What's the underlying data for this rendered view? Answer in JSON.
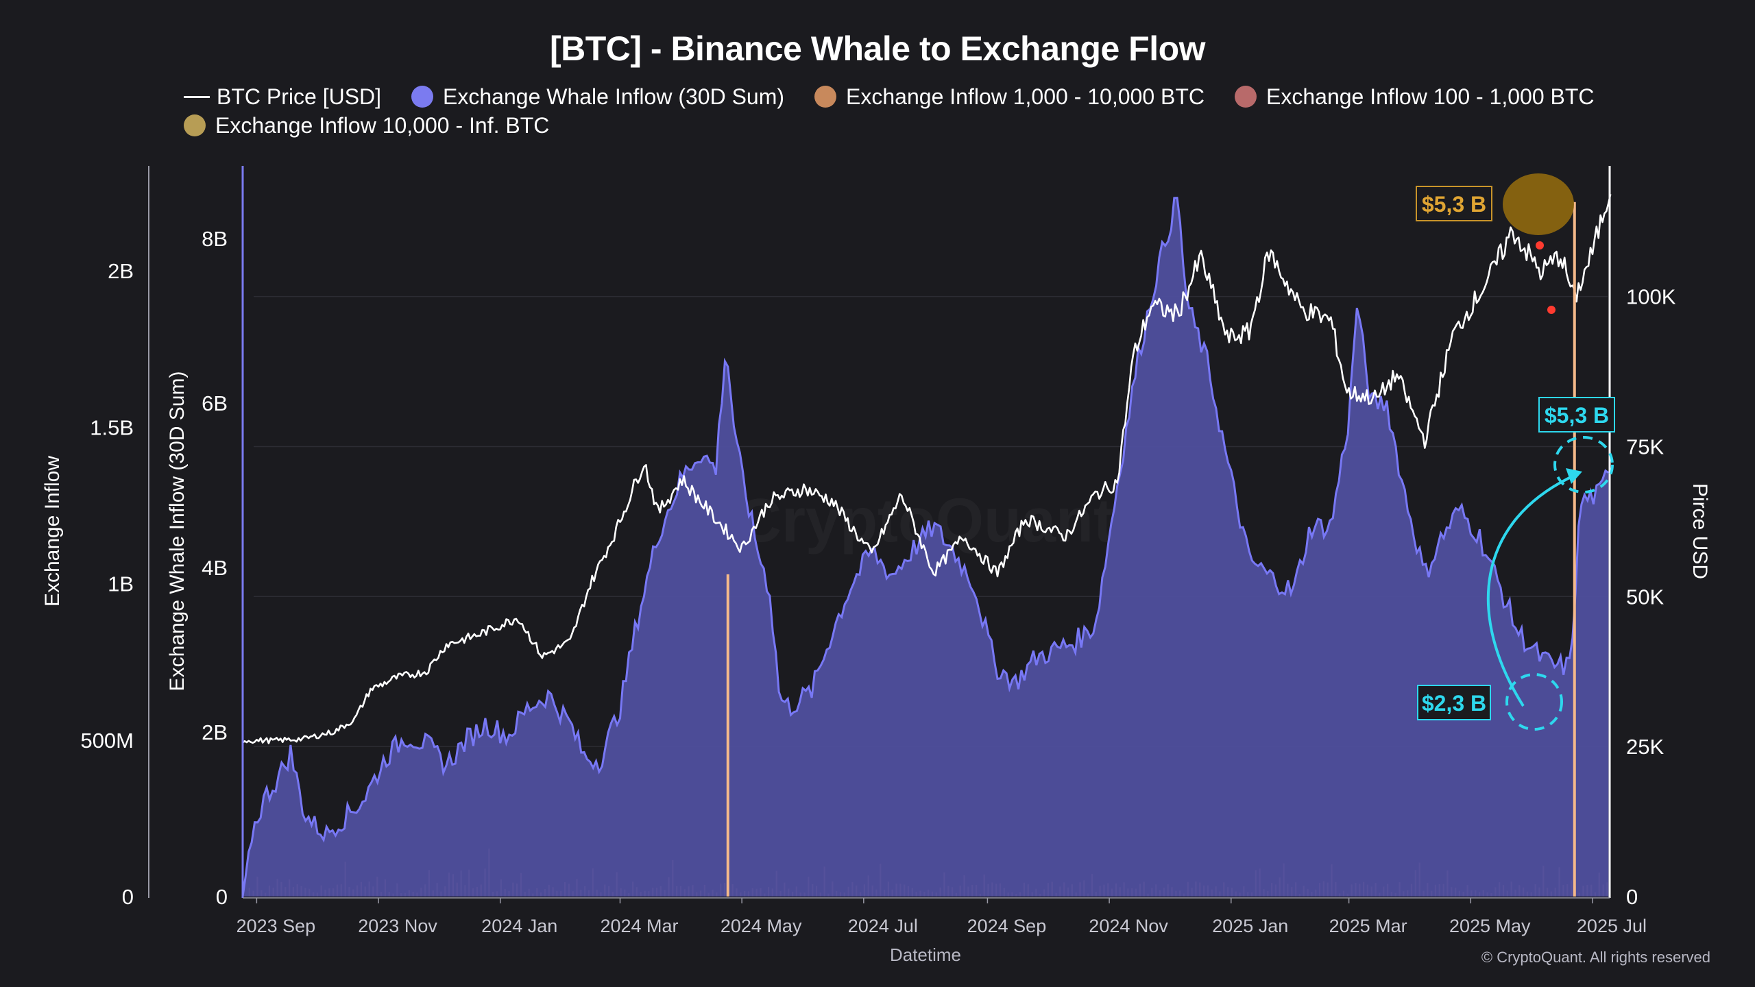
{
  "chart_data": {
    "type": "area",
    "title": "[BTC] - Binance Whale to Exchange Flow",
    "xlabel": "Datetime",
    "x_ticks": [
      "2023 Sep",
      "2023 Nov",
      "2024 Jan",
      "2024 Mar",
      "2024 May",
      "2024 Jul",
      "2024 Sep",
      "2024 Nov",
      "2025 Jan",
      "2025 Mar",
      "2025 May",
      "2025 Jul"
    ],
    "axes": {
      "exchange_inflow": {
        "label": "Exchange Inflow",
        "ticks": [
          "0",
          "500M",
          "1B",
          "1.5B",
          "2B"
        ],
        "range": [
          0,
          2340000000
        ]
      },
      "whale_inflow": {
        "label": "Exchange Whale Inflow (30D Sum)",
        "ticks": [
          "0",
          "2B",
          "4B",
          "6B",
          "8B"
        ],
        "range": [
          0,
          8900000000
        ]
      },
      "price": {
        "label": "Pirce USD",
        "ticks": [
          "0",
          "25K",
          "50K",
          "75K",
          "100K"
        ],
        "range": [
          0,
          122000
        ]
      }
    },
    "legend": [
      {
        "name": "BTC Price [USD]",
        "style": "line",
        "color": "#ffffff"
      },
      {
        "name": "Exchange Whale Inflow (30D Sum)",
        "style": "dot",
        "color": "#7b7bf0"
      },
      {
        "name": "Exchange Inflow 1,000 - 10,000 BTC",
        "style": "dot",
        "color": "#c8895c"
      },
      {
        "name": "Exchange Inflow 100 - 1,000 BTC",
        "style": "dot",
        "color": "#b86a6a"
      },
      {
        "name": "Exchange Inflow 10,000 - Inf. BTC",
        "style": "dot",
        "color": "#b79d55"
      }
    ],
    "colors": {
      "background": "#1b1b1f",
      "area_fill": "#4f4f9e",
      "area_line": "#7878f5",
      "price_line": "#ffffff",
      "inflow_bars": "#e8907a",
      "spike": "#f5b98a",
      "annotation_gold": "#d9a030",
      "annotation_cyan": "#2ed8ee",
      "grid": "#2c2c33"
    },
    "series": [
      {
        "name": "BTC Price [USD]",
        "axis": "price",
        "points": [
          [
            "2023-08-25",
            26000
          ],
          [
            "2023-09-10",
            26000
          ],
          [
            "2023-09-25",
            26300
          ],
          [
            "2023-10-10",
            27500
          ],
          [
            "2023-10-20",
            29500
          ],
          [
            "2023-10-28",
            34500
          ],
          [
            "2023-11-10",
            36500
          ],
          [
            "2023-11-25",
            37500
          ],
          [
            "2023-12-05",
            42000
          ],
          [
            "2023-12-20",
            43500
          ],
          [
            "2024-01-10",
            46500
          ],
          [
            "2024-01-22",
            40000
          ],
          [
            "2024-02-05",
            42500
          ],
          [
            "2024-02-15",
            52000
          ],
          [
            "2024-02-28",
            61000
          ],
          [
            "2024-03-13",
            72500
          ],
          [
            "2024-03-20",
            64000
          ],
          [
            "2024-04-01",
            69500
          ],
          [
            "2024-04-15",
            64000
          ],
          [
            "2024-05-01",
            58000
          ],
          [
            "2024-05-15",
            66000
          ],
          [
            "2024-06-01",
            68000
          ],
          [
            "2024-06-15",
            66000
          ],
          [
            "2024-07-05",
            57000
          ],
          [
            "2024-07-20",
            67000
          ],
          [
            "2024-08-05",
            54000
          ],
          [
            "2024-08-20",
            60000
          ],
          [
            "2024-09-06",
            53800
          ],
          [
            "2024-09-20",
            63000
          ],
          [
            "2024-10-10",
            60000
          ],
          [
            "2024-10-25",
            67000
          ],
          [
            "2024-11-05",
            69000
          ],
          [
            "2024-11-13",
            90000
          ],
          [
            "2024-11-22",
            98500
          ],
          [
            "2024-12-05",
            97000
          ],
          [
            "2024-12-17",
            106500
          ],
          [
            "2024-12-30",
            93000
          ],
          [
            "2025-01-10",
            94000
          ],
          [
            "2025-01-20",
            107500
          ],
          [
            "2025-02-05",
            98000
          ],
          [
            "2025-02-20",
            96000
          ],
          [
            "2025-02-28",
            84000
          ],
          [
            "2025-03-15",
            83000
          ],
          [
            "2025-03-25",
            87000
          ],
          [
            "2025-04-08",
            76000
          ],
          [
            "2025-04-22",
            93500
          ],
          [
            "2025-05-10",
            103000
          ],
          [
            "2025-05-22",
            111000
          ],
          [
            "2025-06-05",
            104000
          ],
          [
            "2025-06-15",
            107000
          ],
          [
            "2025-06-22",
            99500
          ],
          [
            "2025-07-01",
            107500
          ],
          [
            "2025-07-10",
            118000
          ]
        ]
      },
      {
        "name": "Exchange Whale Inflow (30D Sum)",
        "axis": "whale_inflow",
        "points": [
          [
            "2023-08-25",
            0.0
          ],
          [
            "2023-08-30",
            0.8
          ],
          [
            "2023-09-05",
            1.2
          ],
          [
            "2023-09-12",
            1.45
          ],
          [
            "2023-09-18",
            1.75
          ],
          [
            "2023-09-25",
            1.0
          ],
          [
            "2023-10-05",
            0.75
          ],
          [
            "2023-10-15",
            0.95
          ],
          [
            "2023-10-25",
            1.2
          ],
          [
            "2023-11-05",
            1.7
          ],
          [
            "2023-11-15",
            1.95
          ],
          [
            "2023-11-25",
            1.85
          ],
          [
            "2023-12-05",
            1.6
          ],
          [
            "2023-12-15",
            1.9
          ],
          [
            "2023-12-25",
            2.1
          ],
          [
            "2024-01-05",
            1.95
          ],
          [
            "2024-01-15",
            2.3
          ],
          [
            "2024-01-25",
            2.45
          ],
          [
            "2024-02-05",
            2.1
          ],
          [
            "2024-02-12",
            1.7
          ],
          [
            "2024-02-20",
            1.65
          ],
          [
            "2024-03-01",
            2.3
          ],
          [
            "2024-03-10",
            3.4
          ],
          [
            "2024-03-20",
            4.4
          ],
          [
            "2024-04-01",
            5.1
          ],
          [
            "2024-04-10",
            5.4
          ],
          [
            "2024-04-18",
            5.2
          ],
          [
            "2024-04-23",
            6.7
          ],
          [
            "2024-04-28",
            5.5
          ],
          [
            "2024-05-08",
            4.3
          ],
          [
            "2024-05-15",
            3.7
          ],
          [
            "2024-05-20",
            2.4
          ],
          [
            "2024-05-25",
            2.3
          ],
          [
            "2024-06-05",
            2.5
          ],
          [
            "2024-06-15",
            3.2
          ],
          [
            "2024-06-25",
            3.8
          ],
          [
            "2024-07-05",
            4.2
          ],
          [
            "2024-07-15",
            3.9
          ],
          [
            "2024-07-25",
            4.2
          ],
          [
            "2024-08-05",
            4.5
          ],
          [
            "2024-08-15",
            4.2
          ],
          [
            "2024-08-25",
            3.8
          ],
          [
            "2024-09-05",
            2.8
          ],
          [
            "2024-09-15",
            2.6
          ],
          [
            "2024-09-25",
            2.9
          ],
          [
            "2024-10-05",
            3.0
          ],
          [
            "2024-10-15",
            3.1
          ],
          [
            "2024-10-25",
            3.3
          ],
          [
            "2024-11-05",
            5.0
          ],
          [
            "2024-11-15",
            6.5
          ],
          [
            "2024-11-25",
            7.6
          ],
          [
            "2024-12-05",
            8.5
          ],
          [
            "2024-12-10",
            7.2
          ],
          [
            "2024-12-20",
            6.5
          ],
          [
            "2024-12-30",
            5.3
          ],
          [
            "2025-01-10",
            4.1
          ],
          [
            "2025-01-20",
            3.9
          ],
          [
            "2025-02-01",
            3.7
          ],
          [
            "2025-02-10",
            4.5
          ],
          [
            "2025-02-20",
            4.5
          ],
          [
            "2025-03-01",
            5.8
          ],
          [
            "2025-03-05",
            7.2
          ],
          [
            "2025-03-12",
            6.0
          ],
          [
            "2025-03-20",
            6.0
          ],
          [
            "2025-03-28",
            5.0
          ],
          [
            "2025-04-08",
            3.9
          ],
          [
            "2025-04-15",
            4.3
          ],
          [
            "2025-04-25",
            4.7
          ],
          [
            "2025-05-05",
            4.4
          ],
          [
            "2025-05-15",
            3.8
          ],
          [
            "2025-05-25",
            3.2
          ],
          [
            "2025-06-05",
            2.9
          ],
          [
            "2025-06-12",
            2.8
          ],
          [
            "2025-06-20",
            2.8
          ],
          [
            "2025-06-25",
            4.8
          ],
          [
            "2025-07-05",
            4.9
          ],
          [
            "2025-07-10",
            5.3
          ]
        ]
      },
      {
        "name": "Exchange Inflow 10,000 - Inf. BTC",
        "axis": "exchange_inflow",
        "points": [
          [
            "2024-04-24",
            1030000000
          ],
          [
            "2025-06-22",
            2220000000
          ]
        ]
      }
    ]
  },
  "annotations": {
    "gold_label": "$5,3 B",
    "cyan_top_label": "$5,3 B",
    "cyan_bottom_label": "$2,3 B"
  },
  "footer": {
    "copyright": "© CryptoQuant. All rights reserved",
    "watermark": "CryptoQuant"
  }
}
